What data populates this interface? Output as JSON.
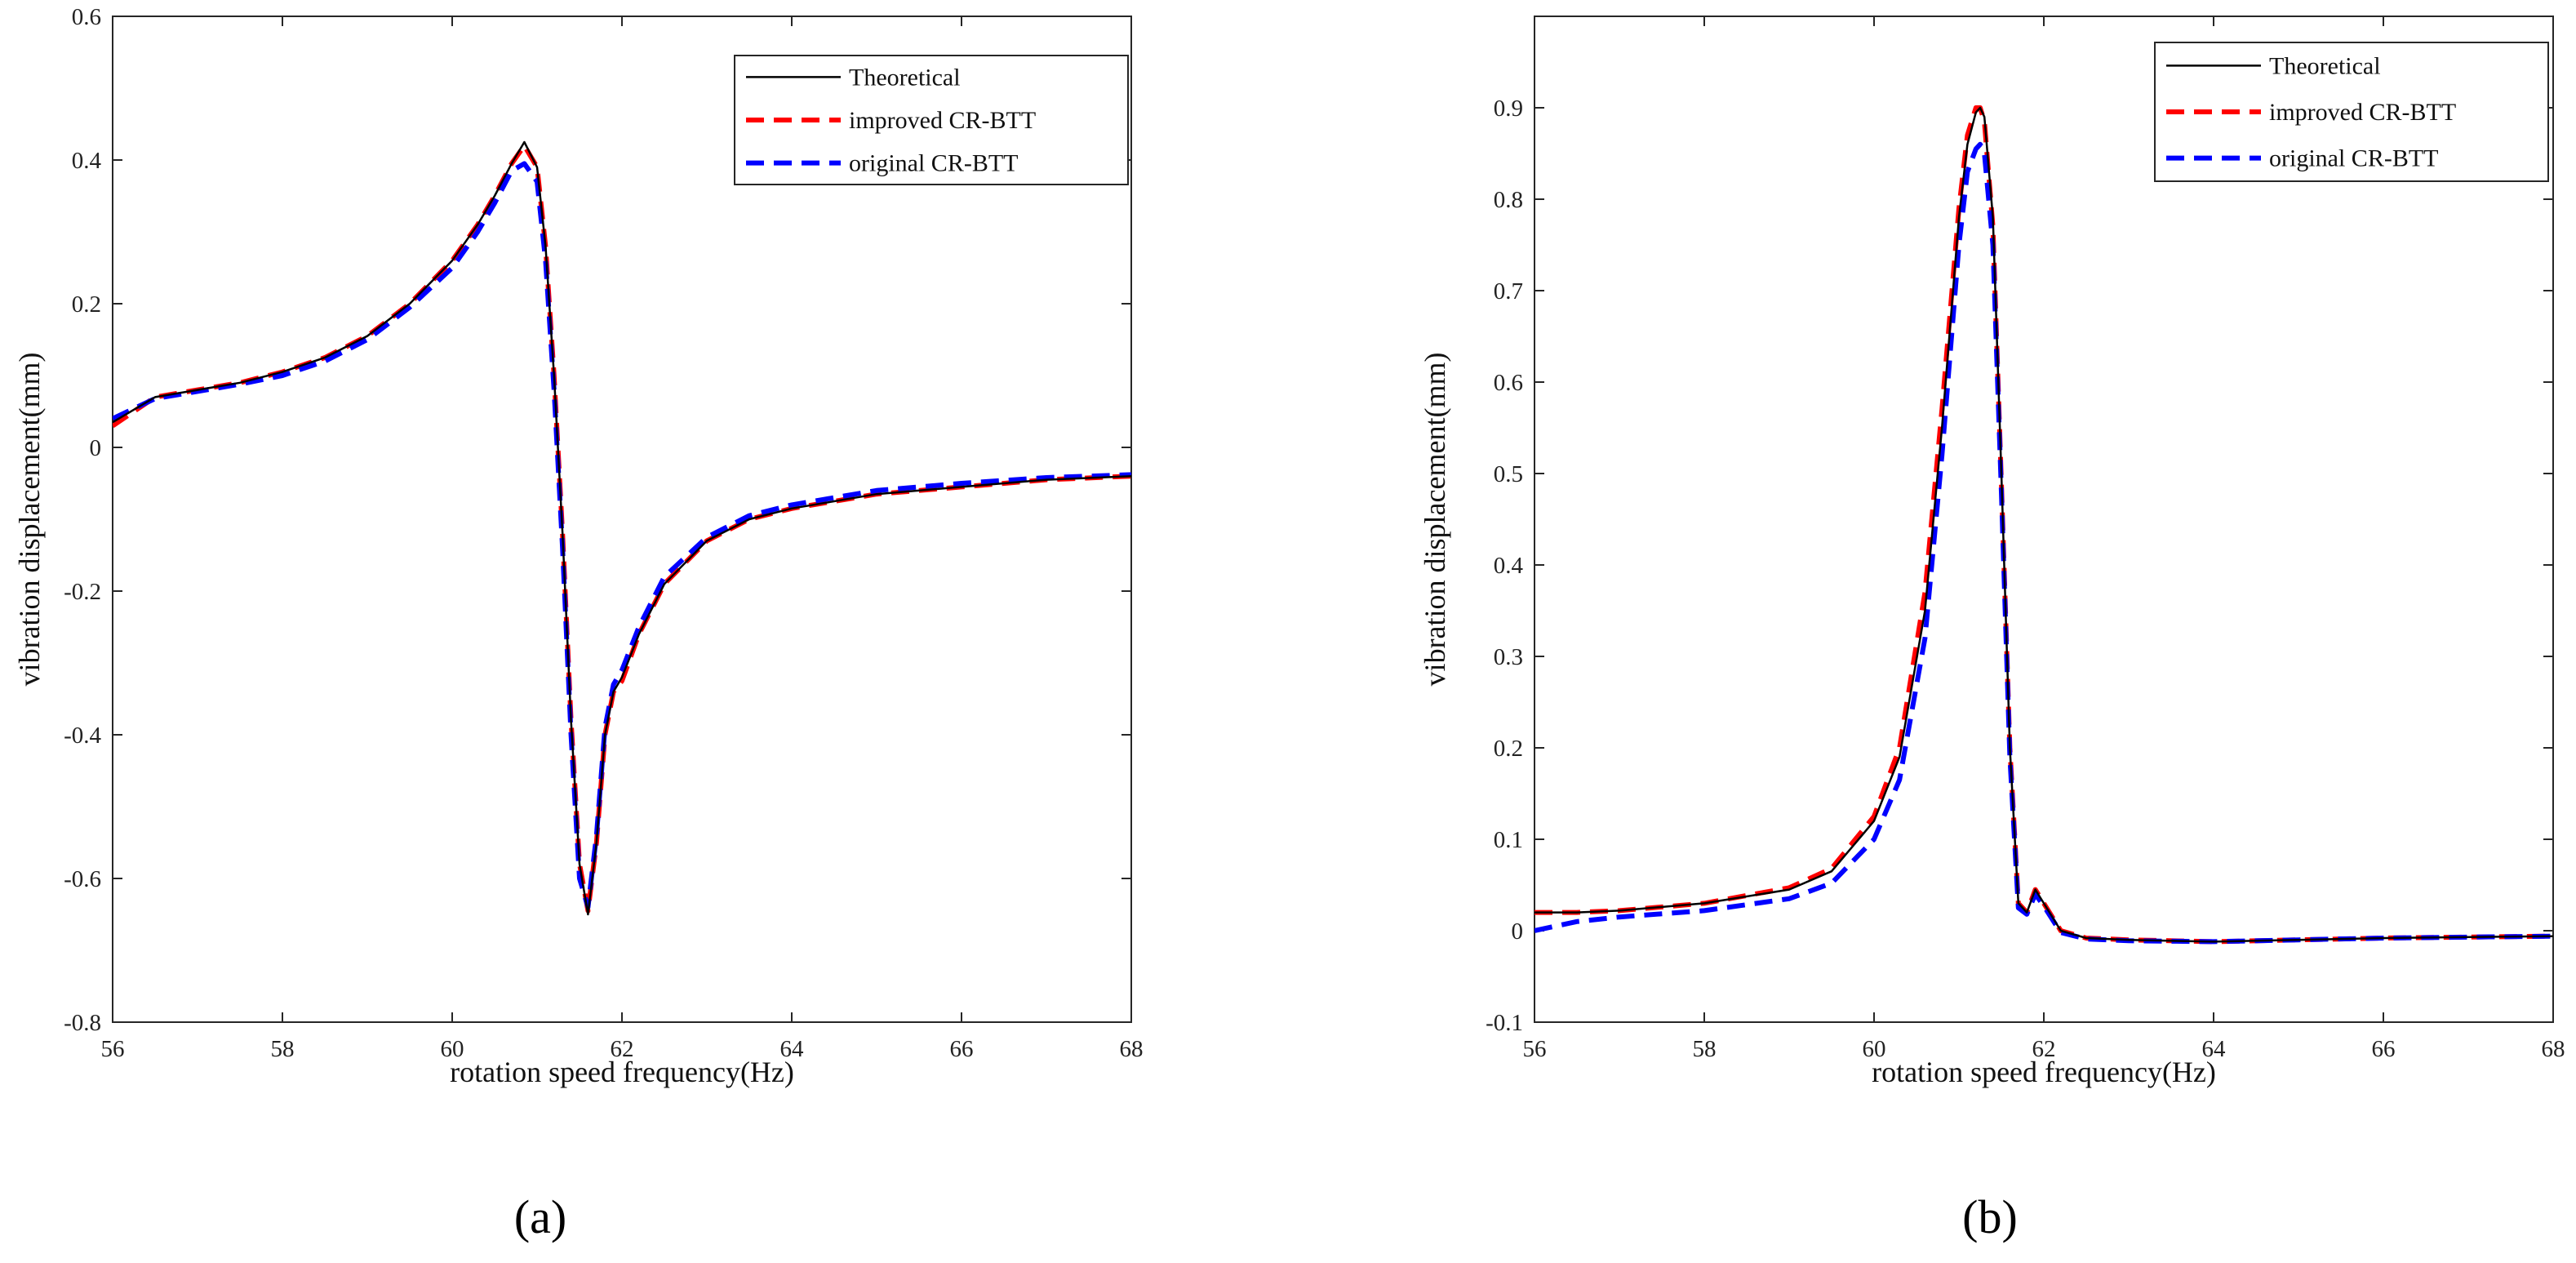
{
  "chart_data": [
    {
      "type": "line",
      "panel_label": "(a)",
      "xlabel": "rotation speed frequency(Hz)",
      "ylabel": "vibration displacement(mm)",
      "xlim": [
        56,
        68
      ],
      "ylim": [
        -0.8,
        0.6
      ],
      "xticks": [
        56,
        58,
        60,
        62,
        64,
        66,
        68
      ],
      "yticks": [
        -0.8,
        -0.6,
        -0.4,
        -0.2,
        0,
        0.2,
        0.4,
        0.6
      ],
      "ytick_labels": [
        "-0.8",
        "-0.6",
        "-0.4",
        "-0.2",
        "0",
        "0.2",
        "0.4",
        "0.6"
      ],
      "grid": false,
      "legend_position": "top-right",
      "series": [
        {
          "name": "Theoretical",
          "color": "#000000",
          "style": "solid",
          "x": [
            56.0,
            56.5,
            57.0,
            57.5,
            58.0,
            58.5,
            59.0,
            59.5,
            60.0,
            60.3,
            60.5,
            60.7,
            60.85,
            61.0,
            61.1,
            61.2,
            61.3,
            61.4,
            61.5,
            61.6,
            61.7,
            61.8,
            61.9,
            62.0,
            62.2,
            62.5,
            63.0,
            63.5,
            64.0,
            65.0,
            66.0,
            67.0,
            68.0
          ],
          "y": [
            0.035,
            0.07,
            0.08,
            0.09,
            0.105,
            0.125,
            0.155,
            0.2,
            0.26,
            0.31,
            0.35,
            0.395,
            0.425,
            0.39,
            0.28,
            0.1,
            -0.12,
            -0.38,
            -0.58,
            -0.65,
            -0.55,
            -0.4,
            -0.34,
            -0.32,
            -0.26,
            -0.19,
            -0.13,
            -0.1,
            -0.085,
            -0.065,
            -0.055,
            -0.045,
            -0.04
          ]
        },
        {
          "name": "improved CR-BTT",
          "color": "#ff0000",
          "style": "dashed",
          "x": [
            56.0,
            56.5,
            57.0,
            57.5,
            58.0,
            58.5,
            59.0,
            59.5,
            60.0,
            60.3,
            60.5,
            60.7,
            60.85,
            61.0,
            61.1,
            61.2,
            61.3,
            61.4,
            61.5,
            61.6,
            61.7,
            61.8,
            61.9,
            62.0,
            62.2,
            62.5,
            63.0,
            63.5,
            64.0,
            65.0,
            66.0,
            67.0,
            68.0
          ],
          "y": [
            0.03,
            0.07,
            0.08,
            0.09,
            0.105,
            0.125,
            0.155,
            0.2,
            0.26,
            0.31,
            0.35,
            0.395,
            0.42,
            0.39,
            0.28,
            0.1,
            -0.12,
            -0.38,
            -0.58,
            -0.645,
            -0.55,
            -0.4,
            -0.34,
            -0.325,
            -0.26,
            -0.19,
            -0.13,
            -0.1,
            -0.085,
            -0.065,
            -0.055,
            -0.045,
            -0.04
          ]
        },
        {
          "name": "original CR-BTT",
          "color": "#0000ff",
          "style": "dashed",
          "x": [
            56.0,
            56.5,
            57.0,
            57.5,
            58.0,
            58.5,
            59.0,
            59.5,
            60.0,
            60.3,
            60.5,
            60.7,
            60.85,
            61.0,
            61.1,
            61.2,
            61.3,
            61.4,
            61.5,
            61.6,
            61.7,
            61.8,
            61.9,
            62.0,
            62.2,
            62.5,
            63.0,
            63.5,
            64.0,
            65.0,
            66.0,
            67.0,
            68.0
          ],
          "y": [
            0.04,
            0.068,
            0.078,
            0.088,
            0.1,
            0.12,
            0.15,
            0.195,
            0.25,
            0.3,
            0.34,
            0.385,
            0.395,
            0.37,
            0.26,
            0.08,
            -0.14,
            -0.4,
            -0.6,
            -0.64,
            -0.54,
            -0.39,
            -0.33,
            -0.31,
            -0.25,
            -0.18,
            -0.125,
            -0.095,
            -0.08,
            -0.06,
            -0.05,
            -0.042,
            -0.038
          ]
        }
      ]
    },
    {
      "type": "line",
      "panel_label": "(b)",
      "xlabel": "rotation speed frequency(Hz)",
      "ylabel": "vibration displacement(mm)",
      "xlim": [
        56,
        68
      ],
      "ylim": [
        -0.1,
        1.0
      ],
      "xticks": [
        56,
        58,
        60,
        62,
        64,
        66,
        68
      ],
      "yticks": [
        -0.1,
        0,
        0.1,
        0.2,
        0.3,
        0.4,
        0.5,
        0.6,
        0.7,
        0.8,
        0.9
      ],
      "ytick_labels": [
        "-0.1",
        "0",
        "0.1",
        "0.2",
        "0.3",
        "0.4",
        "0.5",
        "0.6",
        "0.7",
        "0.8",
        "0.9"
      ],
      "grid": false,
      "legend_position": "top-right",
      "series": [
        {
          "name": "Theoretical",
          "color": "#000000",
          "style": "solid",
          "x": [
            56.0,
            56.5,
            57.0,
            58.0,
            59.0,
            59.5,
            60.0,
            60.3,
            60.6,
            60.8,
            61.0,
            61.1,
            61.2,
            61.25,
            61.3,
            61.4,
            61.5,
            61.6,
            61.7,
            61.8,
            61.9,
            62.0,
            62.2,
            62.5,
            63.0,
            64.0,
            65.0,
            66.0,
            67.0,
            68.0
          ],
          "y": [
            0.02,
            0.02,
            0.022,
            0.03,
            0.045,
            0.065,
            0.12,
            0.19,
            0.35,
            0.55,
            0.78,
            0.86,
            0.895,
            0.9,
            0.89,
            0.78,
            0.5,
            0.2,
            0.03,
            0.02,
            0.045,
            0.03,
            0.0,
            -0.008,
            -0.01,
            -0.012,
            -0.01,
            -0.008,
            -0.007,
            -0.006
          ]
        },
        {
          "name": "improved CR-BTT",
          "color": "#ff0000",
          "style": "dashed",
          "x": [
            56.0,
            56.5,
            57.0,
            58.0,
            59.0,
            59.5,
            60.0,
            60.3,
            60.6,
            60.8,
            61.0,
            61.1,
            61.2,
            61.25,
            61.3,
            61.4,
            61.5,
            61.6,
            61.7,
            61.8,
            61.9,
            62.0,
            62.2,
            62.5,
            63.0,
            64.0,
            65.0,
            66.0,
            67.0,
            68.0
          ],
          "y": [
            0.02,
            0.02,
            0.022,
            0.03,
            0.047,
            0.068,
            0.125,
            0.2,
            0.37,
            0.57,
            0.79,
            0.87,
            0.9,
            0.9,
            0.885,
            0.77,
            0.49,
            0.2,
            0.03,
            0.02,
            0.045,
            0.03,
            0.0,
            -0.008,
            -0.01,
            -0.012,
            -0.01,
            -0.008,
            -0.007,
            -0.006
          ]
        },
        {
          "name": "original CR-BTT",
          "color": "#0000ff",
          "style": "dashed",
          "x": [
            56.0,
            56.5,
            57.0,
            58.0,
            59.0,
            59.5,
            60.0,
            60.3,
            60.6,
            60.8,
            61.0,
            61.1,
            61.2,
            61.25,
            61.3,
            61.4,
            61.5,
            61.6,
            61.7,
            61.8,
            61.9,
            62.0,
            62.2,
            62.5,
            63.0,
            64.0,
            65.0,
            66.0,
            67.0,
            68.0
          ],
          "y": [
            0.0,
            0.01,
            0.015,
            0.022,
            0.035,
            0.052,
            0.1,
            0.165,
            0.32,
            0.52,
            0.75,
            0.83,
            0.855,
            0.86,
            0.85,
            0.75,
            0.48,
            0.19,
            0.025,
            0.018,
            0.04,
            0.027,
            -0.002,
            -0.009,
            -0.011,
            -0.012,
            -0.01,
            -0.008,
            -0.007,
            -0.006
          ]
        }
      ]
    }
  ]
}
